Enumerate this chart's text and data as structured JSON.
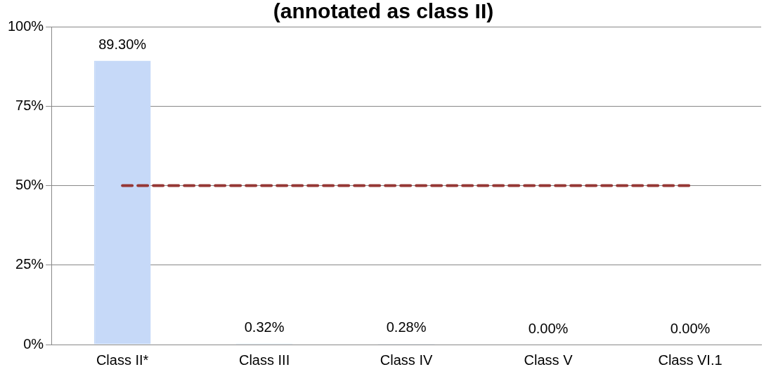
{
  "chart_data": {
    "type": "bar",
    "title": "(annotated as class II)",
    "categories": [
      "Class II*",
      "Class III",
      "Class IV",
      "Class V",
      "Class VI.1"
    ],
    "series": [
      {
        "color": "#c6d9f8",
        "values": [
          89.3,
          0.32,
          0.28,
          0,
          0
        ],
        "value_labels": [
          "89.30%",
          "0.32%",
          "0.28%",
          "0.00%",
          "0.00%"
        ]
      },
      {
        "type": "line",
        "color": "#953735",
        "values": [
          50,
          50,
          50,
          50,
          50
        ],
        "line_style": "dashed",
        "marker": "none"
      }
    ],
    "ylim": [
      0,
      100
    ],
    "yticks": [
      {
        "value": 0,
        "label": "0%"
      },
      {
        "value": 25,
        "label": "25%"
      },
      {
        "value": 50,
        "label": "50%"
      },
      {
        "value": 75,
        "label": "75%"
      },
      {
        "value": 100,
        "label": "100%"
      }
    ],
    "grid": "y",
    "legend": false
  }
}
